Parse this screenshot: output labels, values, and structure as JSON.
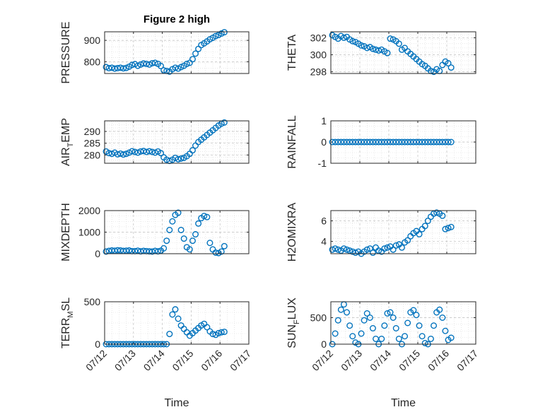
{
  "figure": {
    "title": "Figure 2 high",
    "marker_color": "#0072BD",
    "x_axis_label": "Time"
  },
  "chart_data": [
    {
      "type": "scatter",
      "title": "Figure 2 high",
      "ylabel": "PRESSURE",
      "xlabel": "",
      "xlim": [
        "07/12",
        "07/17"
      ],
      "ylim": [
        745,
        940
      ],
      "yticks": [
        "800",
        "900"
      ],
      "xticks": [
        "07/12",
        "07/13",
        "07/14",
        "07/15",
        "07/16",
        "07/17"
      ],
      "grid": true,
      "x": [
        0.05,
        0.15,
        0.25,
        0.35,
        0.45,
        0.55,
        0.65,
        0.75,
        0.85,
        0.95,
        1.05,
        1.15,
        1.25,
        1.35,
        1.45,
        1.55,
        1.65,
        1.75,
        1.85,
        1.95,
        2.05,
        2.15,
        2.25,
        2.35,
        2.45,
        2.55,
        2.65,
        2.75,
        2.85,
        2.95,
        3.05,
        3.15,
        3.25,
        3.35,
        3.45,
        3.55,
        3.65,
        3.75,
        3.85,
        3.95,
        4.05,
        4.15
      ],
      "y": [
        775,
        770,
        772,
        768,
        770,
        772,
        769,
        771,
        777,
        785,
        789,
        781,
        787,
        792,
        790,
        787,
        793,
        795,
        790,
        780,
        760,
        757,
        754,
        765,
        772,
        768,
        775,
        781,
        790,
        795,
        812,
        838,
        860,
        878,
        886,
        895,
        905,
        912,
        920,
        925,
        932,
        938
      ]
    },
    {
      "type": "scatter",
      "title": "",
      "ylabel": "THETA",
      "xlabel": "",
      "xlim": [
        "07/12",
        "07/17"
      ],
      "ylim": [
        297.8,
        302.7
      ],
      "yticks": [
        "298",
        "300",
        "302"
      ],
      "xticks": [
        "07/12",
        "07/13",
        "07/14",
        "07/15",
        "07/16",
        "07/17"
      ],
      "grid": true,
      "x": [
        0.05,
        0.15,
        0.25,
        0.35,
        0.45,
        0.55,
        0.65,
        0.75,
        0.85,
        0.95,
        1.05,
        1.15,
        1.25,
        1.35,
        1.45,
        1.55,
        1.65,
        1.75,
        1.85,
        1.95,
        2.05,
        2.15,
        2.25,
        2.35,
        2.45,
        2.55,
        2.65,
        2.75,
        2.85,
        2.95,
        3.05,
        3.15,
        3.25,
        3.35,
        3.45,
        3.55,
        3.65,
        3.75,
        3.85,
        3.95,
        4.05,
        4.15
      ],
      "y": [
        302.3,
        302.1,
        301.9,
        302.2,
        302.0,
        302.1,
        301.8,
        301.6,
        301.5,
        301.3,
        301.1,
        301.0,
        300.8,
        300.9,
        300.7,
        300.6,
        300.5,
        300.6,
        300.4,
        300.2,
        301.9,
        301.8,
        301.6,
        301.3,
        300.6,
        300.8,
        300.4,
        300.1,
        299.8,
        299.5,
        299.2,
        298.9,
        298.7,
        298.4,
        298.1,
        298.0,
        298.3,
        298.1,
        298.8,
        299.2,
        299.0,
        298.5
      ]
    },
    {
      "type": "scatter",
      "title": "",
      "ylabel": "AIR_TEMP",
      "xlabel": "",
      "xlim": [
        "07/12",
        "07/17"
      ],
      "ylim": [
        276.5,
        294.5
      ],
      "yticks": [
        "280",
        "285",
        "290"
      ],
      "xticks": [
        "07/12",
        "07/13",
        "07/14",
        "07/15",
        "07/16",
        "07/17"
      ],
      "grid": true,
      "x": [
        0.05,
        0.15,
        0.25,
        0.35,
        0.45,
        0.55,
        0.65,
        0.75,
        0.85,
        0.95,
        1.05,
        1.15,
        1.25,
        1.35,
        1.45,
        1.55,
        1.65,
        1.75,
        1.85,
        1.95,
        2.05,
        2.15,
        2.25,
        2.35,
        2.45,
        2.55,
        2.65,
        2.75,
        2.85,
        2.95,
        3.05,
        3.15,
        3.25,
        3.35,
        3.45,
        3.55,
        3.65,
        3.75,
        3.85,
        3.95,
        4.05,
        4.15
      ],
      "y": [
        281.5,
        280.8,
        280.5,
        281.0,
        280.3,
        280.6,
        280.2,
        280.5,
        281.0,
        281.6,
        281.3,
        281.0,
        281.5,
        281.7,
        281.3,
        281.6,
        281.3,
        281.0,
        281.5,
        280.8,
        279.0,
        278.0,
        277.5,
        278.0,
        278.8,
        278.2,
        278.5,
        278.8,
        279.5,
        280.5,
        282.0,
        284.0,
        285.5,
        286.5,
        287.5,
        288.5,
        289.5,
        290.5,
        291.5,
        292.5,
        293.3,
        293.8
      ]
    },
    {
      "type": "scatter",
      "title": "",
      "ylabel": "RAINFALL",
      "xlabel": "",
      "xlim": [
        "07/12",
        "07/17"
      ],
      "ylim": [
        -1,
        1
      ],
      "yticks": [
        "-1",
        "0",
        "1"
      ],
      "xticks": [
        "07/12",
        "07/13",
        "07/14",
        "07/15",
        "07/16",
        "07/17"
      ],
      "grid": true,
      "x": [
        0.05,
        0.15,
        0.25,
        0.35,
        0.45,
        0.55,
        0.65,
        0.75,
        0.85,
        0.95,
        1.05,
        1.15,
        1.25,
        1.35,
        1.45,
        1.55,
        1.65,
        1.75,
        1.85,
        1.95,
        2.05,
        2.15,
        2.25,
        2.35,
        2.45,
        2.55,
        2.65,
        2.75,
        2.85,
        2.95,
        3.05,
        3.15,
        3.25,
        3.35,
        3.45,
        3.55,
        3.65,
        3.75,
        3.85,
        3.95,
        4.05,
        4.15
      ],
      "y": [
        0,
        0,
        0,
        0,
        0,
        0,
        0,
        0,
        0,
        0,
        0,
        0,
        0,
        0,
        0,
        0,
        0,
        0,
        0,
        0,
        0,
        0,
        0,
        0,
        0,
        0,
        0,
        0,
        0,
        0,
        0,
        0,
        0,
        0,
        0,
        0,
        0,
        0,
        0,
        0,
        0,
        0
      ]
    },
    {
      "type": "scatter",
      "title": "",
      "ylabel": "MIXDEPTH",
      "xlabel": "",
      "xlim": [
        "07/12",
        "07/17"
      ],
      "ylim": [
        0,
        2000
      ],
      "yticks": [
        "0",
        "1000",
        "2000"
      ],
      "xticks": [
        "07/12",
        "07/13",
        "07/14",
        "07/15",
        "07/16",
        "07/17"
      ],
      "grid": true,
      "x": [
        0.05,
        0.15,
        0.25,
        0.35,
        0.45,
        0.55,
        0.65,
        0.75,
        0.85,
        0.95,
        1.05,
        1.15,
        1.25,
        1.35,
        1.45,
        1.55,
        1.65,
        1.75,
        1.85,
        1.95,
        2.05,
        2.15,
        2.25,
        2.35,
        2.45,
        2.55,
        2.65,
        2.75,
        2.85,
        2.95,
        3.05,
        3.15,
        3.25,
        3.35,
        3.45,
        3.55,
        3.65,
        3.75,
        3.85,
        3.95,
        4.05,
        4.15
      ],
      "y": [
        100,
        130,
        150,
        140,
        160,
        150,
        130,
        140,
        150,
        120,
        120,
        140,
        110,
        130,
        120,
        110,
        100,
        130,
        110,
        140,
        250,
        600,
        1100,
        1500,
        1800,
        1900,
        1100,
        700,
        300,
        200,
        600,
        900,
        1400,
        1650,
        1750,
        1700,
        500,
        200,
        50,
        30,
        100,
        350
      ]
    },
    {
      "type": "scatter",
      "title": "",
      "ylabel": "H2OMIXRA",
      "xlabel": "",
      "xlim": [
        "07/12",
        "07/17"
      ],
      "ylim": [
        2.8,
        7.0
      ],
      "yticks": [
        "4",
        "6"
      ],
      "xticks": [
        "07/12",
        "07/13",
        "07/14",
        "07/15",
        "07/16",
        "07/17"
      ],
      "grid": true,
      "x": [
        0.05,
        0.15,
        0.25,
        0.35,
        0.45,
        0.55,
        0.65,
        0.75,
        0.85,
        0.95,
        1.05,
        1.15,
        1.25,
        1.35,
        1.45,
        1.55,
        1.65,
        1.75,
        1.85,
        1.95,
        2.05,
        2.15,
        2.25,
        2.35,
        2.45,
        2.55,
        2.65,
        2.75,
        2.85,
        2.95,
        3.05,
        3.15,
        3.25,
        3.35,
        3.45,
        3.55,
        3.65,
        3.75,
        3.85,
        3.95,
        4.05,
        4.15
      ],
      "y": [
        3.2,
        3.3,
        3.2,
        3.1,
        3.3,
        3.2,
        3.1,
        3.0,
        2.9,
        3.0,
        2.8,
        3.0,
        3.2,
        3.3,
        2.9,
        3.4,
        3.1,
        3.0,
        3.3,
        3.4,
        3.5,
        3.2,
        3.6,
        3.7,
        3.4,
        3.9,
        4.1,
        4.5,
        4.8,
        5.0,
        4.7,
        5.2,
        5.5,
        6.0,
        6.4,
        6.7,
        6.8,
        6.7,
        6.5,
        5.2,
        5.3,
        5.4
      ]
    },
    {
      "type": "scatter",
      "title": "",
      "ylabel": "TERR_MSL",
      "xlabel": "Time",
      "xlim": [
        "07/12",
        "07/17"
      ],
      "ylim": [
        0,
        500
      ],
      "yticks": [
        "0",
        "500"
      ],
      "xticks": [
        "07/12",
        "07/13",
        "07/14",
        "07/15",
        "07/16",
        "07/17"
      ],
      "grid": true,
      "x": [
        0.05,
        0.15,
        0.25,
        0.35,
        0.45,
        0.55,
        0.65,
        0.75,
        0.85,
        0.95,
        1.05,
        1.15,
        1.25,
        1.35,
        1.45,
        1.55,
        1.65,
        1.75,
        1.85,
        1.95,
        2.05,
        2.15,
        2.25,
        2.35,
        2.45,
        2.55,
        2.65,
        2.75,
        2.85,
        2.95,
        3.05,
        3.15,
        3.25,
        3.35,
        3.45,
        3.55,
        3.65,
        3.75,
        3.85,
        3.95,
        4.05,
        4.15
      ],
      "y": [
        0,
        0,
        0,
        0,
        0,
        0,
        0,
        0,
        0,
        0,
        0,
        0,
        0,
        0,
        0,
        0,
        0,
        0,
        0,
        0,
        0,
        0,
        120,
        350,
        410,
        300,
        220,
        180,
        140,
        100,
        130,
        160,
        190,
        220,
        240,
        200,
        150,
        120,
        110,
        130,
        140,
        145
      ]
    },
    {
      "type": "scatter",
      "title": "",
      "ylabel": "SUN_FLUX",
      "xlabel": "Time",
      "xlim": [
        "07/12",
        "07/17"
      ],
      "ylim": [
        0,
        800
      ],
      "yticks": [
        "0",
        "500"
      ],
      "xticks": [
        "07/12",
        "07/13",
        "07/14",
        "07/15",
        "07/16",
        "07/17"
      ],
      "grid": true,
      "x": [
        0.05,
        0.15,
        0.25,
        0.35,
        0.45,
        0.55,
        0.65,
        0.75,
        0.85,
        0.95,
        1.05,
        1.15,
        1.25,
        1.35,
        1.45,
        1.55,
        1.65,
        1.75,
        1.85,
        1.95,
        2.05,
        2.15,
        2.25,
        2.35,
        2.45,
        2.55,
        2.65,
        2.75,
        2.85,
        2.95,
        3.05,
        3.15,
        3.25,
        3.35,
        3.45,
        3.55,
        3.65,
        3.75,
        3.85,
        3.95,
        4.05,
        4.15
      ],
      "y": [
        0,
        200,
        450,
        650,
        750,
        600,
        350,
        150,
        30,
        0,
        200,
        450,
        580,
        500,
        300,
        100,
        0,
        100,
        350,
        580,
        600,
        500,
        300,
        100,
        0,
        150,
        400,
        600,
        640,
        550,
        350,
        150,
        20,
        0,
        100,
        350,
        600,
        650,
        500,
        250,
        80,
        120
      ]
    }
  ]
}
